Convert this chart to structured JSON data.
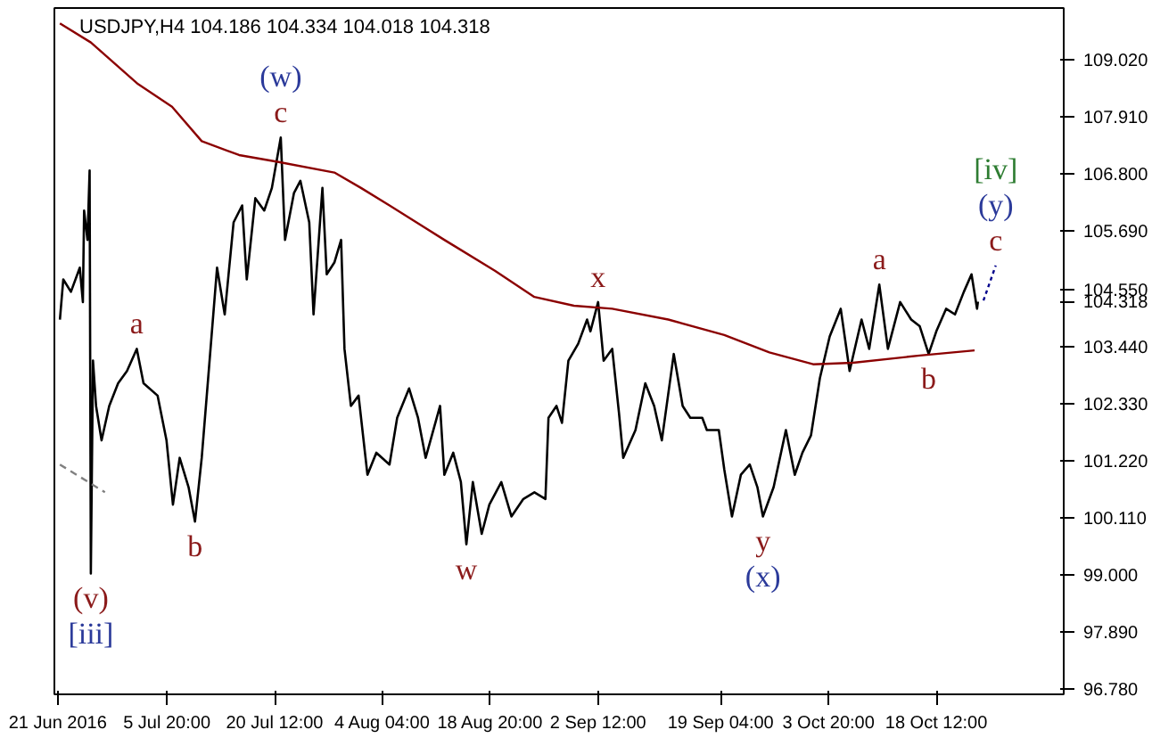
{
  "chart_data": {
    "type": "line",
    "title": "USDJPY,H4  104.186 104.334 104.018 104.318",
    "xlim": [
      "2016-06-20T13:00",
      "2016-11-04T20:00"
    ],
    "ylim": [
      96.68,
      110.03
    ],
    "xticks": [
      {
        "value": "2016-06-21T00:00",
        "label": "21 Jun 2016"
      },
      {
        "value": "2016-07-05T20:00",
        "label": "5 Jul 20:00"
      },
      {
        "value": "2016-07-20T12:00",
        "label": "20 Jul 12:00"
      },
      {
        "value": "2016-08-04T04:00",
        "label": "4 Aug 04:00"
      },
      {
        "value": "2016-08-18T20:00",
        "label": "18 Aug 20:00"
      },
      {
        "value": "2016-09-02T12:00",
        "label": "2 Sep 12:00"
      },
      {
        "value": "2016-09-19T04:00",
        "label": "19 Sep 04:00"
      },
      {
        "value": "2016-10-03T20:00",
        "label": "3 Oct 20:00"
      },
      {
        "value": "2016-10-18T12:00",
        "label": "18 Oct 12:00"
      }
    ],
    "yticks": [
      {
        "value": 109.02,
        "label": "109.020"
      },
      {
        "value": 107.91,
        "label": "107.910"
      },
      {
        "value": 106.8,
        "label": "106.800"
      },
      {
        "value": 105.69,
        "label": "105.690"
      },
      {
        "value": 104.55,
        "label": "104.550"
      },
      {
        "value": 104.318,
        "label": "104.318"
      },
      {
        "value": 103.44,
        "label": "103.440"
      },
      {
        "value": 102.33,
        "label": "102.330"
      },
      {
        "value": 101.22,
        "label": "101.220"
      },
      {
        "value": 100.11,
        "label": "100.110"
      },
      {
        "value": 99.0,
        "label": "99.000"
      },
      {
        "value": 97.89,
        "label": "97.890"
      },
      {
        "value": 96.78,
        "label": "96.780"
      }
    ],
    "grid": false,
    "series": [
      {
        "color": "#000000",
        "line_style": "solid",
        "x": [
          "2016-06-21T07:00",
          "2016-06-21T18:00",
          "2016-06-22T19:00",
          "2016-06-24T00:00",
          "2016-06-24T10:00",
          "2016-06-24T14:00",
          "2016-06-25T01:00",
          "2016-06-25T08:00",
          "2016-06-25T12:00",
          "2016-06-25T19:00",
          "2016-06-26T05:00",
          "2016-06-26T23:00",
          "2016-06-28T00:00",
          "2016-06-29T05:00",
          "2016-06-30T10:00",
          "2016-07-01T18:00",
          "2016-07-02T16:00",
          "2016-07-04T14:00",
          "2016-07-05T19:00",
          "2016-07-06T16:00",
          "2016-07-07T14:00",
          "2016-07-08T19:00",
          "2016-07-09T16:00",
          "2016-07-10T14:00",
          "2016-07-11T11:00",
          "2016-07-12T16:00",
          "2016-07-13T17:00",
          "2016-07-14T22:00",
          "2016-07-16T02:00",
          "2016-07-16T17:00",
          "2016-07-17T21:00",
          "2016-07-19T02:00",
          "2016-07-20T03:00",
          "2016-07-21T08:00",
          "2016-07-21T22:00",
          "2016-07-23T03:00",
          "2016-07-24T00:00",
          "2016-07-25T05:00",
          "2016-07-25T19:00",
          "2016-07-27T00:00",
          "2016-07-27T14:00",
          "2016-07-28T15:00",
          "2016-07-29T13:00",
          "2016-07-30T00:00",
          "2016-07-30T21:00",
          "2016-07-31T22:00",
          "2016-08-02T03:00",
          "2016-08-03T08:00",
          "2016-08-05T03:00",
          "2016-08-06T04:00",
          "2016-08-07T19:00",
          "2016-08-09T00:00",
          "2016-08-10T01:00",
          "2016-08-12T00:00",
          "2016-08-12T14:00",
          "2016-08-13T19:00",
          "2016-08-14T20:00",
          "2016-08-15T14:00",
          "2016-08-16T11:00",
          "2016-08-17T16:00",
          "2016-08-18T17:00",
          "2016-08-20T08:00",
          "2016-08-21T17:00",
          "2016-08-23T08:00",
          "2016-08-24T20:00",
          "2016-08-26T08:00",
          "2016-08-26T18:00",
          "2016-08-27T20:00",
          "2016-08-28T14:00",
          "2016-08-29T11:00",
          "2016-08-30T19:00",
          "2016-09-01T00:00",
          "2016-09-01T11:00",
          "2016-09-02T12:00",
          "2016-09-03T06:00",
          "2016-09-04T10:00",
          "2016-09-05T08:00",
          "2016-09-05T22:00",
          "2016-09-07T14:00",
          "2016-09-08T22:00",
          "2016-09-10T03:00",
          "2016-09-11T04:00",
          "2016-09-12T19:00",
          "2016-09-14T00:00",
          "2016-09-15T01:00",
          "2016-09-16T16:00",
          "2016-09-17T07:00",
          "2016-09-18T22:00",
          "2016-09-19T16:00",
          "2016-09-20T17:00",
          "2016-09-21T22:00",
          "2016-09-23T03:00",
          "2016-09-24T04:00",
          "2016-09-24T22:00",
          "2016-09-26T09:00",
          "2016-09-28T01:00",
          "2016-09-29T06:00",
          "2016-09-30T07:00",
          "2016-10-01T11:00",
          "2016-10-02T16:00",
          "2016-10-04T00:00",
          "2016-10-05T12:00",
          "2016-10-06T17:00",
          "2016-10-08T08:00",
          "2016-10-09T09:00",
          "2016-10-10T18:00",
          "2016-10-11T22:00",
          "2016-10-13T14:00",
          "2016-10-15T02:00",
          "2016-10-16T06:00",
          "2016-10-17T11:00",
          "2016-10-18T12:00",
          "2016-10-19T20:00",
          "2016-10-21T01:00",
          "2016-10-22T06:00",
          "2016-10-23T07:00",
          "2016-10-24T01:00",
          "2016-10-24T04:00"
        ],
        "values": [
          103.97,
          104.75,
          104.51,
          104.98,
          104.31,
          106.09,
          105.52,
          106.87,
          99.03,
          103.17,
          102.29,
          101.62,
          102.29,
          102.73,
          102.97,
          103.4,
          102.73,
          102.49,
          101.62,
          100.37,
          101.28,
          100.71,
          100.04,
          101.28,
          102.83,
          104.98,
          104.07,
          105.86,
          106.19,
          104.75,
          106.33,
          106.09,
          106.53,
          107.51,
          105.52,
          106.43,
          106.67,
          105.86,
          104.07,
          106.53,
          104.85,
          105.08,
          105.52,
          103.4,
          102.29,
          102.49,
          100.95,
          101.38,
          101.15,
          102.06,
          102.63,
          102.06,
          101.28,
          102.29,
          100.95,
          101.38,
          100.81,
          99.6,
          100.81,
          99.8,
          100.37,
          100.81,
          100.14,
          100.48,
          100.61,
          100.48,
          102.06,
          102.29,
          101.96,
          103.17,
          103.5,
          103.97,
          103.74,
          104.31,
          103.17,
          103.4,
          102.16,
          101.28,
          101.82,
          102.73,
          102.29,
          101.62,
          103.3,
          102.29,
          102.06,
          102.06,
          101.82,
          101.82,
          101.05,
          100.14,
          100.95,
          101.15,
          100.71,
          100.14,
          100.71,
          101.82,
          100.95,
          101.38,
          101.72,
          102.83,
          103.64,
          104.18,
          102.97,
          103.97,
          103.4,
          104.65,
          103.4,
          104.31,
          103.97,
          103.84,
          103.3,
          103.74,
          104.18,
          104.07,
          104.51,
          104.85,
          104.18,
          104.32
        ]
      },
      {
        "color": "#8b0000",
        "line_style": "solid",
        "x": [
          "2016-06-21T07:00",
          "2016-06-25T12:00",
          "2016-07-01T22:00",
          "2016-07-06T13:00",
          "2016-07-10T14:00",
          "2016-07-15T16:00",
          "2016-07-20T21:00",
          "2016-07-28T15:00",
          "2016-08-01T06:00",
          "2016-08-05T03:00",
          "2016-08-12T14:00",
          "2016-08-19T11:00",
          "2016-08-24T20:00",
          "2016-08-30T05:00",
          "2016-09-04T10:00",
          "2016-09-12T01:00",
          "2016-09-19T16:00",
          "2016-09-25T19:00",
          "2016-10-01T18:00",
          "2016-10-07T04:00",
          "2016-10-16T06:00",
          "2016-10-23T17:00"
        ],
        "values": [
          109.73,
          109.36,
          108.55,
          108.11,
          107.44,
          107.17,
          107.04,
          106.83,
          106.53,
          106.19,
          105.52,
          104.92,
          104.41,
          104.24,
          104.18,
          103.97,
          103.67,
          103.33,
          103.1,
          103.13,
          103.27,
          103.37
        ]
      },
      {
        "color": "#808080",
        "line_style": "dashed",
        "x": [
          "2016-06-21T07:00",
          "2016-06-27T10:00"
        ],
        "values": [
          101.15,
          100.61
        ]
      },
      {
        "color": "#00008b",
        "line_style": "dotted",
        "x": [
          "2016-10-24T22:00",
          "2016-10-26T14:00"
        ],
        "values": [
          104.34,
          105.02
        ]
      }
    ],
    "annotations": [
      {
        "text": "c",
        "x": "2016-07-21T08:00",
        "y": 107.51
      },
      {
        "text": "(w)",
        "x": "2016-07-21T08:00",
        "y": 107.51
      },
      {
        "text": "a",
        "x": "2016-07-01T18:00",
        "y": 103.4
      },
      {
        "text": "b",
        "x": "2016-07-09T16:00",
        "y": 100.04
      },
      {
        "text": "(v)",
        "x": "2016-06-25T12:00",
        "y": 99.03
      },
      {
        "text": "[iii]",
        "x": "2016-06-25T12:00",
        "y": 99.03
      },
      {
        "text": "w",
        "x": "2016-08-15T14:00",
        "y": 99.6
      },
      {
        "text": "x",
        "x": "2016-09-02T12:00",
        "y": 104.31
      },
      {
        "text": "y",
        "x": "2016-09-24T22:00",
        "y": 100.14
      },
      {
        "text": "(x)",
        "x": "2016-09-24T22:00",
        "y": 100.14
      },
      {
        "text": "a",
        "x": "2016-10-10T18:00",
        "y": 104.65
      },
      {
        "text": "b",
        "x": "2016-10-17T11:00",
        "y": 103.3
      },
      {
        "text": "c",
        "x": "2016-10-26T14:00",
        "y": 105.02
      },
      {
        "text": "(y)",
        "x": "2016-10-26T14:00",
        "y": 105.02
      },
      {
        "text": "[iv]",
        "x": "2016-10-26T14:00",
        "y": 105.02
      }
    ]
  }
}
